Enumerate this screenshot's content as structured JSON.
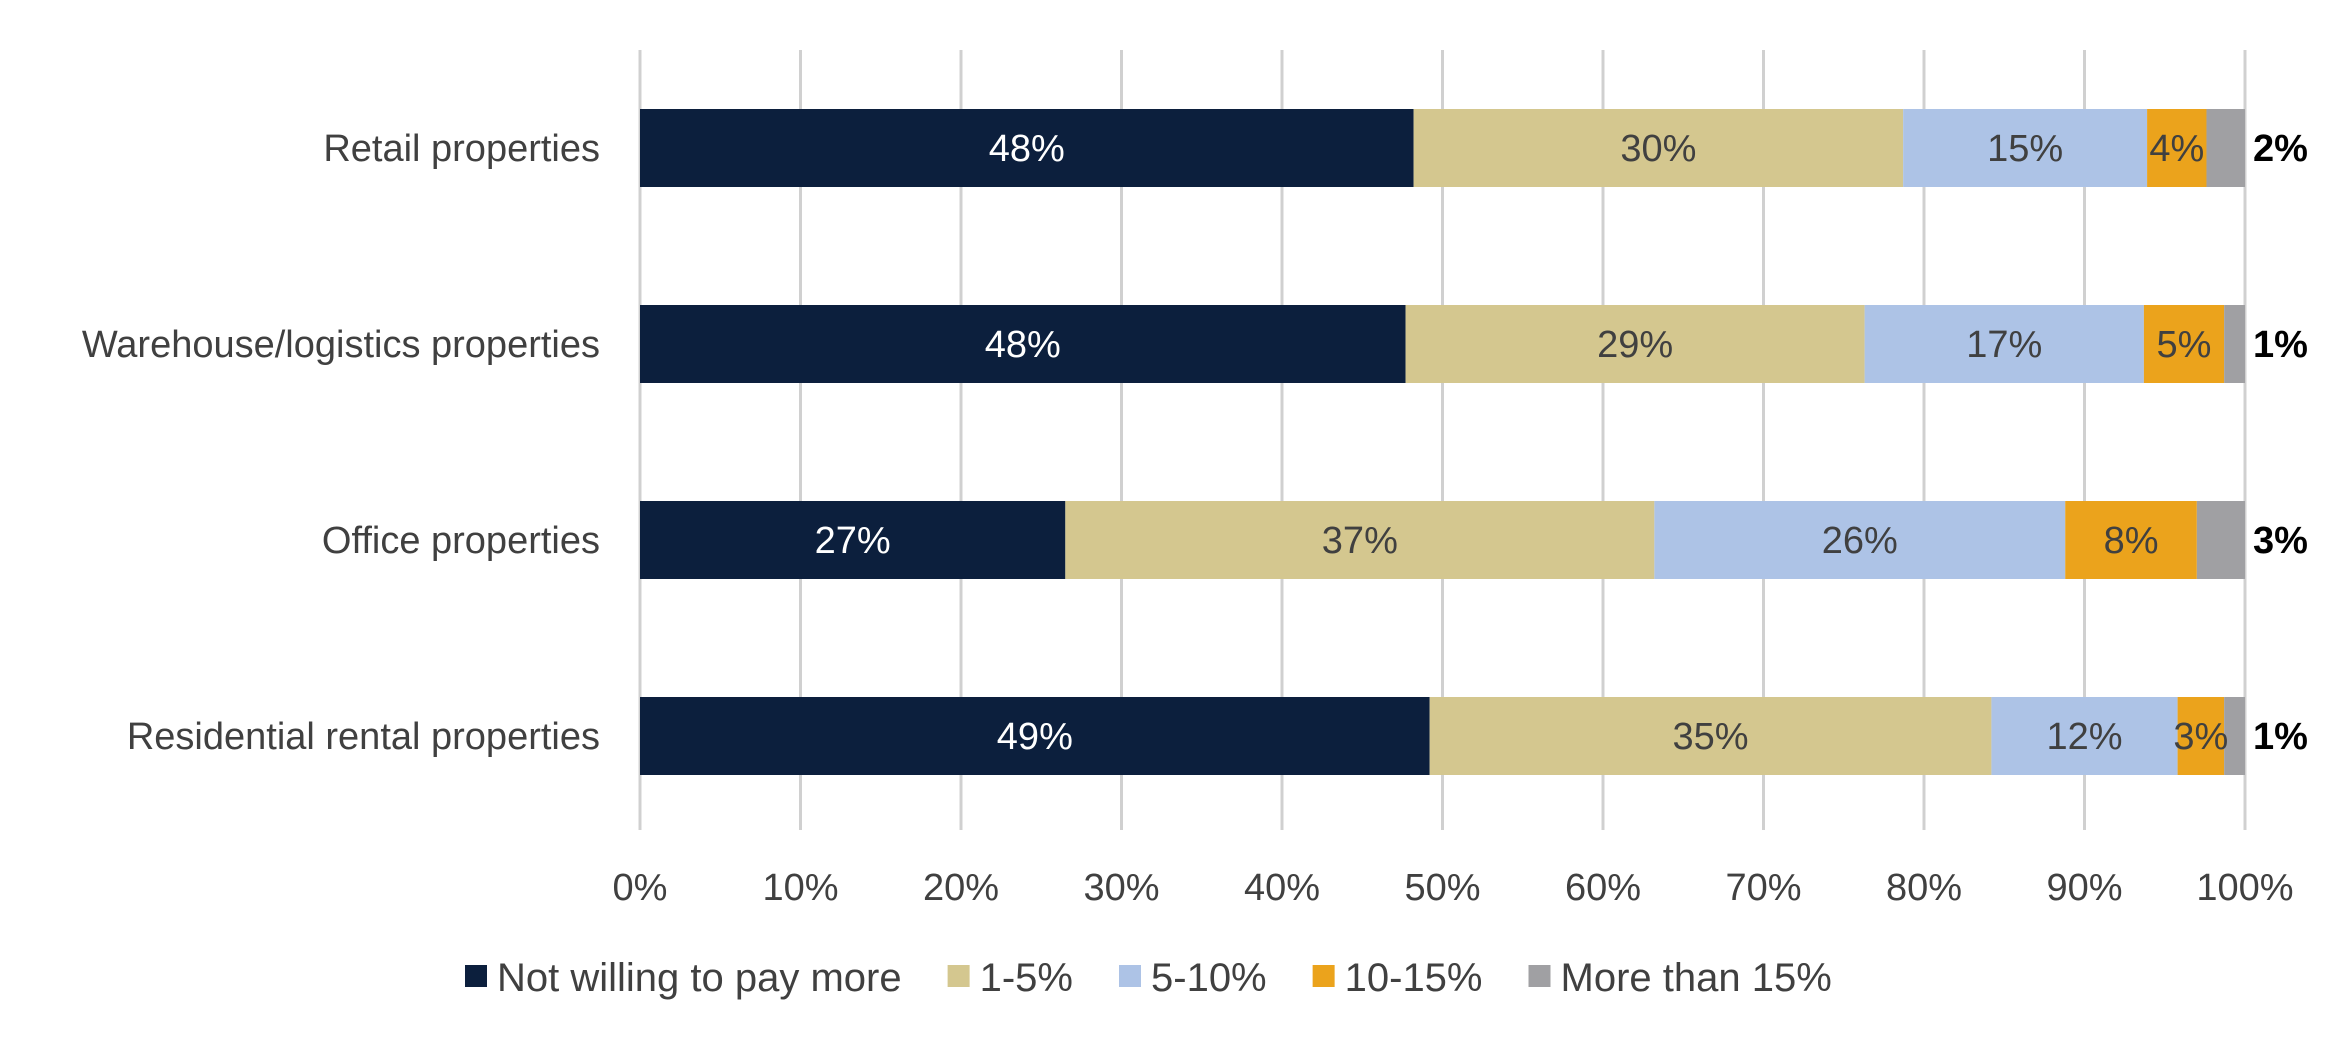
{
  "chart_data": {
    "type": "bar",
    "orientation": "horizontal",
    "stacked": true,
    "title": "",
    "xlabel": "",
    "ylabel": "",
    "xlim": [
      0,
      100
    ],
    "grid": true,
    "legend_position": "bottom",
    "x_ticks": [
      "0%",
      "10%",
      "20%",
      "30%",
      "40%",
      "50%",
      "60%",
      "70%",
      "80%",
      "90%",
      "100%"
    ],
    "categories": [
      "Retail properties",
      "Warehouse/logistics properties",
      "Office properties",
      "Residential rental properties"
    ],
    "series": [
      {
        "name": "Not willing to pay more",
        "color": "#0c1f3d",
        "text_color": "#ffffff",
        "values": [
          48.2,
          47.7,
          26.5,
          49.2
        ],
        "labels": [
          "48%",
          "48%",
          "27%",
          "49%"
        ]
      },
      {
        "name": "1-5%",
        "color": "#d4c78f",
        "text_color": "#404040",
        "values": [
          30.5,
          28.6,
          36.7,
          35.0
        ],
        "labels": [
          "30%",
          "29%",
          "37%",
          "35%"
        ]
      },
      {
        "name": "5-10%",
        "color": "#adc3e6",
        "text_color": "#404040",
        "values": [
          15.2,
          17.4,
          25.6,
          11.6
        ],
        "labels": [
          "15%",
          "17%",
          "26%",
          "12%"
        ]
      },
      {
        "name": "10-15%",
        "color": "#eba31c",
        "text_color": "#404040",
        "values": [
          3.7,
          5.0,
          8.2,
          2.9
        ],
        "labels": [
          "4%",
          "5%",
          "8%",
          "3%"
        ]
      },
      {
        "name": "More than 15%",
        "color": "#a0a0a3",
        "text_color": "#000000",
        "values": [
          2.4,
          1.3,
          3.0,
          1.3
        ],
        "labels": [
          "2%",
          "1%",
          "3%",
          "1%"
        ]
      }
    ]
  }
}
